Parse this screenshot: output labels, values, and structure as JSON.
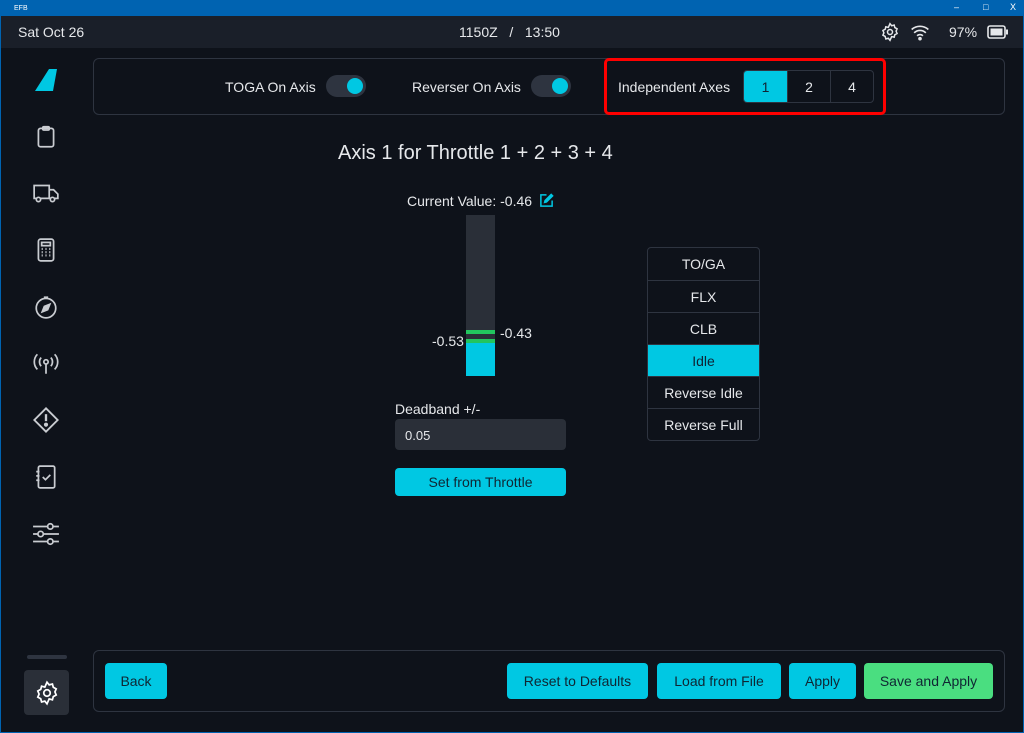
{
  "window": {
    "title": "EFB",
    "minimize": "–",
    "maximize": "□",
    "close": "X"
  },
  "status": {
    "date": "Sat Oct 26",
    "time": "1150Z   /   13:50",
    "battery": "97%"
  },
  "colors": {
    "accent": "#00c8e3",
    "success": "#4ade80",
    "highlight": "#ff0000"
  },
  "sidebar": {
    "items": [
      "logo",
      "clipboard-icon",
      "truck-icon",
      "calculator-icon",
      "compass-icon",
      "antenna-icon",
      "warning-icon",
      "checklist-icon",
      "sliders-icon"
    ],
    "active": "settings"
  },
  "options": {
    "toga_label": "TOGA On Axis",
    "toga_on": true,
    "reverser_label": "Reverser On Axis",
    "reverser_on": true,
    "axes_label": "Independent Axes",
    "axes": [
      "1",
      "2",
      "4"
    ],
    "axes_selected": "1"
  },
  "axis": {
    "title": "Axis 1 for Throttle 1 + 2 + 3 + 4",
    "current_value": "Current Value: -0.46",
    "lower": "-0.53",
    "upper": "-0.43",
    "deadband_label": "Deadband +/-",
    "deadband_value": "0.05",
    "set_button": "Set from Throttle"
  },
  "detents": {
    "items": [
      "TO/GA",
      "FLX",
      "CLB",
      "Idle",
      "Reverse Idle",
      "Reverse Full"
    ],
    "selected": "Idle"
  },
  "footer": {
    "back": "Back",
    "reset": "Reset to Defaults",
    "load": "Load from File",
    "apply": "Apply",
    "save": "Save and Apply"
  }
}
